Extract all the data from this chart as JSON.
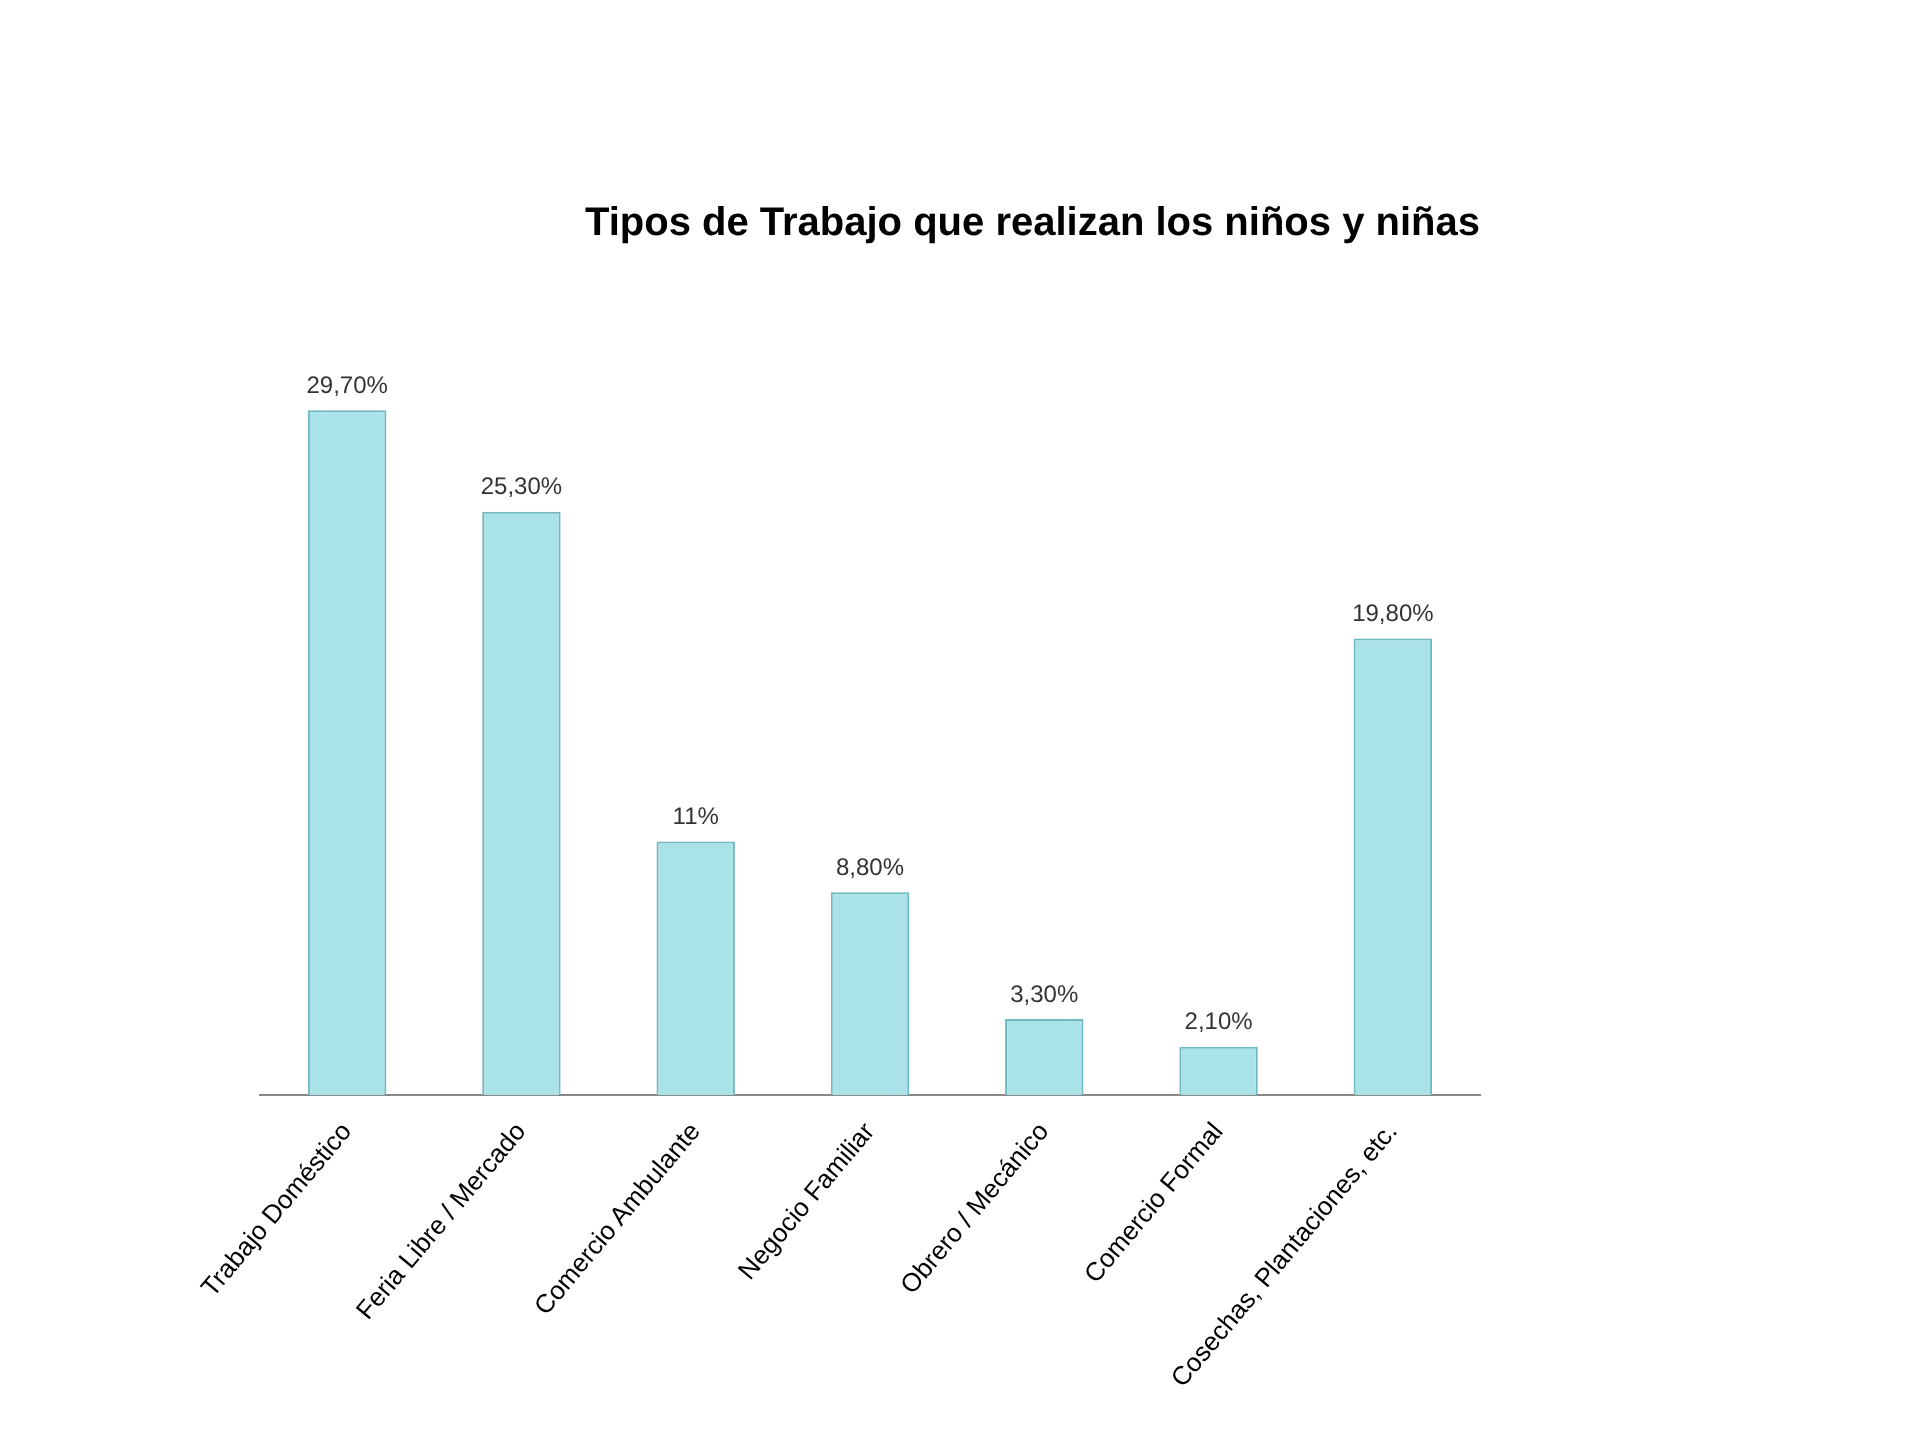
{
  "chart_data": {
    "type": "bar",
    "title": "Tipos de Trabajo que realizan los niños y niñas",
    "categories": [
      "Trabajo Doméstico",
      "Feria Libre / Mercado",
      "Comercio Ambulante",
      "Negocio Familiar",
      "Obrero / Mecánico",
      "Comercio Formal",
      "Cosechas, Plantaciones, etc."
    ],
    "values": [
      29.7,
      25.3,
      11,
      8.8,
      3.3,
      2.1,
      19.8
    ],
    "value_labels": [
      "29,70%",
      "25,30%",
      "11%",
      "8,80%",
      "3,30%",
      "2,10%",
      "19,80%"
    ],
    "color": "#a9e3e8",
    "tick_labels": "x",
    "grid": false,
    "legend": false
  }
}
